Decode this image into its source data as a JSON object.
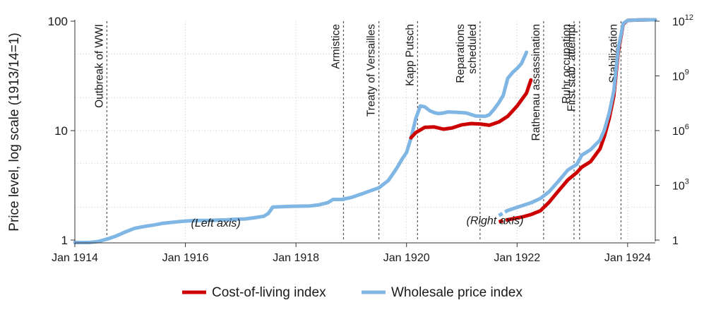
{
  "chart_data": {
    "type": "line",
    "ylabel": "Price level, log scale (1913/14=1)",
    "left_axis": {
      "scale": "log",
      "range": [
        1,
        100
      ],
      "ticks": [
        {
          "value": 1,
          "label": "1"
        },
        {
          "value": 10,
          "label": "10"
        },
        {
          "value": 100,
          "label": "100"
        }
      ]
    },
    "right_axis": {
      "scale": "log",
      "range": [
        1,
        1000000000000
      ],
      "ticks": [
        {
          "value": 1,
          "base": "1",
          "exp": ""
        },
        {
          "value": 1000,
          "base": "10",
          "exp": "3"
        },
        {
          "value": 1000000,
          "base": "10",
          "exp": "6"
        },
        {
          "value": 1000000000,
          "base": "10",
          "exp": "9"
        },
        {
          "value": 1000000000000,
          "base": "10",
          "exp": "12"
        }
      ]
    },
    "x_axis": {
      "range": [
        1914.0,
        1924.5
      ],
      "ticks": [
        {
          "value": 1914,
          "label": "Jan 1914"
        },
        {
          "value": 1916,
          "label": "Jan 1916"
        },
        {
          "value": 1918,
          "label": "Jan 1918"
        },
        {
          "value": 1920,
          "label": "Jan 1920"
        },
        {
          "value": 1922,
          "label": "Jan 1922"
        },
        {
          "value": 1924,
          "label": "Jan 1924"
        }
      ]
    },
    "events": [
      {
        "x": 1914.58,
        "label": "Outbreak of WWI"
      },
      {
        "x": 1918.86,
        "label": "Armistice"
      },
      {
        "x": 1919.5,
        "label": "Treaty of Versailles"
      },
      {
        "x": 1920.2,
        "label": "Kapp Putsch"
      },
      {
        "x": 1921.33,
        "label": "Reparations\nscheduled"
      },
      {
        "x": 1922.48,
        "label": "Rathenau assassination"
      },
      {
        "x": 1923.03,
        "label": "Ruhr occupation"
      },
      {
        "x": 1923.13,
        "label": "First stab. attempt"
      },
      {
        "x": 1923.88,
        "label": "Stabilization"
      }
    ],
    "annotations": [
      {
        "text": "(Left axis)",
        "x": 1916.55,
        "y_left": 1.33
      },
      {
        "text": "(Right axis)",
        "x": 1921.6,
        "y_left": 1.4
      }
    ],
    "series": [
      {
        "name": "Wholesale price index",
        "color": "#7fb6e4",
        "left_axis": [
          [
            1914.0,
            0.95
          ],
          [
            1914.25,
            0.95
          ],
          [
            1914.42,
            0.97
          ],
          [
            1914.58,
            1.02
          ],
          [
            1914.75,
            1.09
          ],
          [
            1914.92,
            1.19
          ],
          [
            1915.08,
            1.28
          ],
          [
            1915.25,
            1.33
          ],
          [
            1915.42,
            1.37
          ],
          [
            1915.58,
            1.42
          ],
          [
            1915.75,
            1.45
          ],
          [
            1915.92,
            1.48
          ],
          [
            1916.08,
            1.5
          ],
          [
            1916.25,
            1.51
          ],
          [
            1916.42,
            1.51
          ],
          [
            1916.58,
            1.52
          ],
          [
            1916.75,
            1.53
          ],
          [
            1916.92,
            1.55
          ],
          [
            1917.08,
            1.56
          ],
          [
            1917.25,
            1.6
          ],
          [
            1917.42,
            1.65
          ],
          [
            1917.5,
            1.75
          ],
          [
            1917.58,
            2.0
          ],
          [
            1917.75,
            2.02
          ],
          [
            1917.92,
            2.03
          ],
          [
            1918.08,
            2.04
          ],
          [
            1918.25,
            2.05
          ],
          [
            1918.42,
            2.1
          ],
          [
            1918.58,
            2.2
          ],
          [
            1918.67,
            2.35
          ],
          [
            1918.83,
            2.35
          ],
          [
            1919.0,
            2.45
          ],
          [
            1919.17,
            2.62
          ],
          [
            1919.33,
            2.8
          ],
          [
            1919.5,
            3.0
          ],
          [
            1919.67,
            3.5
          ],
          [
            1919.75,
            4.0
          ],
          [
            1919.83,
            4.6
          ],
          [
            1919.92,
            5.5
          ],
          [
            1920.0,
            6.3
          ],
          [
            1920.08,
            8.5
          ],
          [
            1920.17,
            13.0
          ],
          [
            1920.25,
            16.8
          ],
          [
            1920.33,
            16.5
          ],
          [
            1920.42,
            15.2
          ],
          [
            1920.5,
            14.6
          ],
          [
            1920.58,
            14.3
          ],
          [
            1920.67,
            14.5
          ],
          [
            1920.75,
            14.8
          ],
          [
            1920.92,
            14.7
          ],
          [
            1921.08,
            14.5
          ],
          [
            1921.25,
            13.6
          ],
          [
            1921.42,
            13.5
          ],
          [
            1921.5,
            14.0
          ],
          [
            1921.58,
            15.6
          ],
          [
            1921.67,
            18.0
          ],
          [
            1921.75,
            21.0
          ],
          [
            1921.83,
            30.0
          ],
          [
            1921.92,
            34.0
          ],
          [
            1922.0,
            37.0
          ],
          [
            1922.08,
            41.0
          ],
          [
            1922.17,
            52.0
          ]
        ],
        "right_axis": [
          [
            1921.67,
            22
          ],
          [
            1921.83,
            42
          ],
          [
            1922.08,
            75
          ],
          [
            1922.25,
            110
          ],
          [
            1922.42,
            190
          ],
          [
            1922.58,
            450
          ],
          [
            1922.75,
            1700
          ],
          [
            1922.92,
            7000
          ],
          [
            1923.08,
            14000
          ],
          [
            1923.17,
            45000
          ],
          [
            1923.33,
            90000
          ],
          [
            1923.5,
            300000
          ],
          [
            1923.58,
            1100000
          ],
          [
            1923.67,
            10000000
          ],
          [
            1923.75,
            150000000
          ],
          [
            1923.83,
            30000000000
          ],
          [
            1923.92,
            750000000000
          ],
          [
            1924.0,
            1100000000000
          ],
          [
            1924.17,
            1150000000000
          ],
          [
            1924.42,
            1200000000000
          ],
          [
            1924.5,
            1200000000000
          ]
        ]
      },
      {
        "name": "Cost-of-living index",
        "color": "#cc0000",
        "left_axis": [
          [
            1920.08,
            8.6
          ],
          [
            1920.17,
            9.6
          ],
          [
            1920.33,
            10.7
          ],
          [
            1920.5,
            10.8
          ],
          [
            1920.67,
            10.3
          ],
          [
            1920.83,
            10.6
          ],
          [
            1921.0,
            11.3
          ],
          [
            1921.17,
            11.6
          ],
          [
            1921.33,
            11.5
          ],
          [
            1921.5,
            11.2
          ],
          [
            1921.67,
            12.0
          ],
          [
            1921.83,
            13.5
          ],
          [
            1922.0,
            16.8
          ],
          [
            1922.17,
            22.0
          ],
          [
            1922.25,
            29.0
          ]
        ],
        "right_axis": [
          [
            1921.67,
            10
          ],
          [
            1921.83,
            13
          ],
          [
            1922.08,
            18
          ],
          [
            1922.25,
            25
          ],
          [
            1922.42,
            40
          ],
          [
            1922.58,
            120
          ],
          [
            1922.75,
            500
          ],
          [
            1922.92,
            2000
          ],
          [
            1923.08,
            5000
          ],
          [
            1923.17,
            10000
          ],
          [
            1923.33,
            20000
          ],
          [
            1923.5,
            100000
          ],
          [
            1923.58,
            500000
          ],
          [
            1923.67,
            5000000
          ],
          [
            1923.75,
            80000000
          ],
          [
            1923.83,
            20000000000
          ],
          [
            1923.92,
            700000000000
          ],
          [
            1924.0,
            1100000000000
          ],
          [
            1924.17,
            1150000000000
          ],
          [
            1924.42,
            1200000000000
          ],
          [
            1924.5,
            1200000000000
          ]
        ]
      }
    ],
    "legend": {
      "position": "bottom",
      "entries": [
        {
          "name": "Cost-of-living index",
          "color": "#cc0000"
        },
        {
          "name": "Wholesale price index",
          "color": "#7fb6e4"
        }
      ]
    }
  }
}
